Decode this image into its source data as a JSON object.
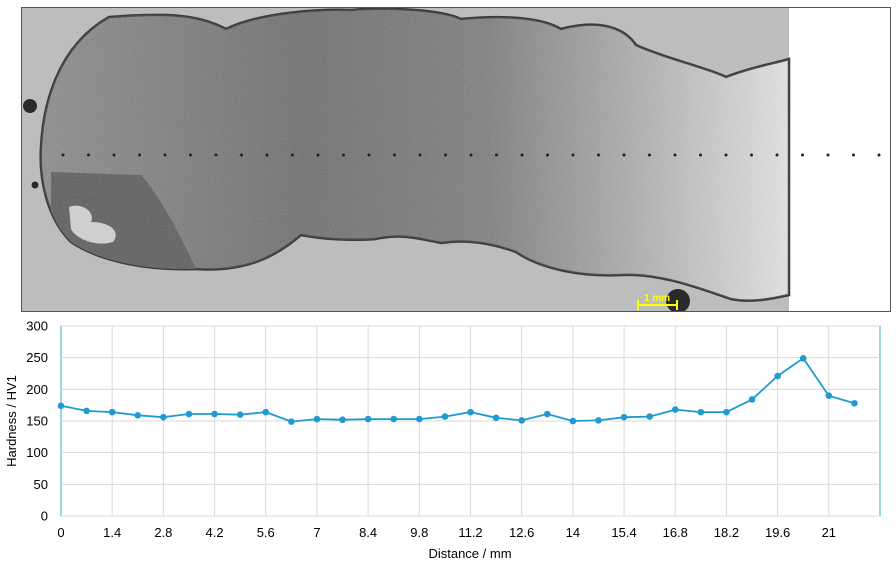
{
  "micrograph": {
    "scale_bar_label": "1 mm",
    "scale_bar_color": "#ffff00"
  },
  "chart_data": {
    "type": "line",
    "xlabel": "Distance / mm",
    "ylabel": "Hardness / HV1",
    "xlim": [
      0,
      22.4
    ],
    "ylim": [
      0,
      300
    ],
    "x_ticks": [
      0,
      1.4,
      2.8,
      4.2,
      5.6,
      7,
      8.4,
      9.8,
      11.2,
      12.6,
      14,
      15.4,
      16.8,
      18.2,
      19.6,
      21
    ],
    "x_tick_labels": [
      "0",
      "1.4",
      "2.8",
      "4.2",
      "5.6",
      "7",
      "8.4",
      "9.8",
      "11.2",
      "12.6",
      "14",
      "15.4",
      "16.8",
      "18.2",
      "19.6",
      "21"
    ],
    "y_ticks": [
      0,
      50,
      100,
      150,
      200,
      250,
      300
    ],
    "y_tick_labels": [
      "0",
      "50",
      "100",
      "150",
      "200",
      "250",
      "300"
    ],
    "grid": true,
    "series_color": "#1f9bd1",
    "series": [
      {
        "x": [
          0,
          0.7,
          1.4,
          2.1,
          2.8,
          3.5,
          4.2,
          4.9,
          5.6,
          6.3,
          7,
          7.7,
          8.4,
          9.1,
          9.8,
          10.5,
          11.2,
          11.9,
          12.6,
          13.3,
          14,
          14.7,
          15.4,
          16.1,
          16.8,
          17.5,
          18.2,
          18.9,
          19.6,
          20.3,
          21,
          21.7
        ],
        "values": [
          174,
          166,
          164,
          159,
          156,
          161,
          161,
          160,
          164,
          149,
          153,
          152,
          153,
          153,
          153,
          157,
          164,
          155,
          151,
          161,
          150,
          151,
          156,
          157,
          168,
          164,
          164,
          184,
          221,
          249,
          190,
          178
        ]
      }
    ]
  }
}
